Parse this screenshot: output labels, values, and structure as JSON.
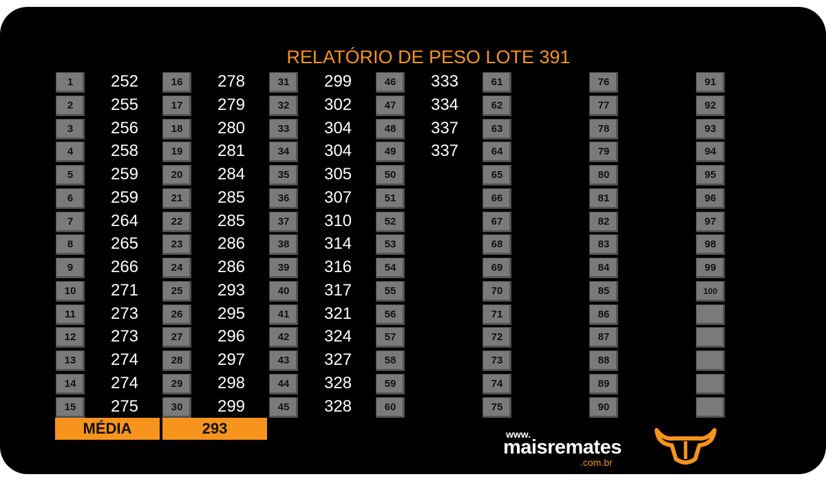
{
  "header": {
    "title": "RELATÓRIO DE PESO LOTE 391"
  },
  "columns": [
    {
      "rows": [
        {
          "n": 1,
          "w": 252
        },
        {
          "n": 2,
          "w": 255
        },
        {
          "n": 3,
          "w": 256
        },
        {
          "n": 4,
          "w": 258
        },
        {
          "n": 5,
          "w": 259
        },
        {
          "n": 6,
          "w": 259
        },
        {
          "n": 7,
          "w": 264
        },
        {
          "n": 8,
          "w": 265
        },
        {
          "n": 9,
          "w": 266
        },
        {
          "n": 10,
          "w": 271
        },
        {
          "n": 11,
          "w": 273
        },
        {
          "n": 12,
          "w": 273
        },
        {
          "n": 13,
          "w": 274
        },
        {
          "n": 14,
          "w": 274
        },
        {
          "n": 15,
          "w": 275
        }
      ]
    },
    {
      "rows": [
        {
          "n": 16,
          "w": 278
        },
        {
          "n": 17,
          "w": 279
        },
        {
          "n": 18,
          "w": 280
        },
        {
          "n": 19,
          "w": 281
        },
        {
          "n": 20,
          "w": 284
        },
        {
          "n": 21,
          "w": 285
        },
        {
          "n": 22,
          "w": 285
        },
        {
          "n": 23,
          "w": 286
        },
        {
          "n": 24,
          "w": 286
        },
        {
          "n": 25,
          "w": 293
        },
        {
          "n": 26,
          "w": 295
        },
        {
          "n": 27,
          "w": 296
        },
        {
          "n": 28,
          "w": 297
        },
        {
          "n": 29,
          "w": 298
        },
        {
          "n": 30,
          "w": 299
        }
      ]
    },
    {
      "rows": [
        {
          "n": 31,
          "w": 299
        },
        {
          "n": 32,
          "w": 302
        },
        {
          "n": 33,
          "w": 304
        },
        {
          "n": 34,
          "w": 304
        },
        {
          "n": 35,
          "w": 305
        },
        {
          "n": 36,
          "w": 307
        },
        {
          "n": 37,
          "w": 310
        },
        {
          "n": 38,
          "w": 314
        },
        {
          "n": 39,
          "w": 316
        },
        {
          "n": 40,
          "w": 317
        },
        {
          "n": 41,
          "w": 321
        },
        {
          "n": 42,
          "w": 324
        },
        {
          "n": 43,
          "w": 327
        },
        {
          "n": 44,
          "w": 328
        },
        {
          "n": 45,
          "w": 328
        }
      ]
    },
    {
      "rows": [
        {
          "n": 46,
          "w": 333
        },
        {
          "n": 47,
          "w": 334
        },
        {
          "n": 48,
          "w": 337
        },
        {
          "n": 49,
          "w": 337
        },
        {
          "n": 50
        },
        {
          "n": 51
        },
        {
          "n": 52
        },
        {
          "n": 53
        },
        {
          "n": 54
        },
        {
          "n": 55
        },
        {
          "n": 56
        },
        {
          "n": 57
        },
        {
          "n": 58
        },
        {
          "n": 59
        },
        {
          "n": 60
        }
      ]
    },
    {
      "rows": [
        {
          "n": 61
        },
        {
          "n": 62
        },
        {
          "n": 63
        },
        {
          "n": 64
        },
        {
          "n": 65
        },
        {
          "n": 66
        },
        {
          "n": 67
        },
        {
          "n": 68
        },
        {
          "n": 69
        },
        {
          "n": 70
        },
        {
          "n": 71
        },
        {
          "n": 72
        },
        {
          "n": 73
        },
        {
          "n": 74
        },
        {
          "n": 75
        }
      ]
    },
    {
      "rows": [
        {
          "n": 76
        },
        {
          "n": 77
        },
        {
          "n": 78
        },
        {
          "n": 79
        },
        {
          "n": 80
        },
        {
          "n": 81
        },
        {
          "n": 82
        },
        {
          "n": 83
        },
        {
          "n": 84
        },
        {
          "n": 85
        },
        {
          "n": 86
        },
        {
          "n": 87
        },
        {
          "n": 88
        },
        {
          "n": 89
        },
        {
          "n": 90
        }
      ]
    },
    {
      "rows": [
        {
          "n": 91
        },
        {
          "n": 92
        },
        {
          "n": 93
        },
        {
          "n": 94
        },
        {
          "n": 95
        },
        {
          "n": 96
        },
        {
          "n": 97
        },
        {
          "n": 98
        },
        {
          "n": 99
        },
        {
          "n": 100
        }
      ]
    }
  ],
  "footer": {
    "label": "MÉDIA",
    "value": 293
  },
  "logo": {
    "prefix": "www.",
    "brand": "maisremates",
    "domain": ".com.br"
  }
}
